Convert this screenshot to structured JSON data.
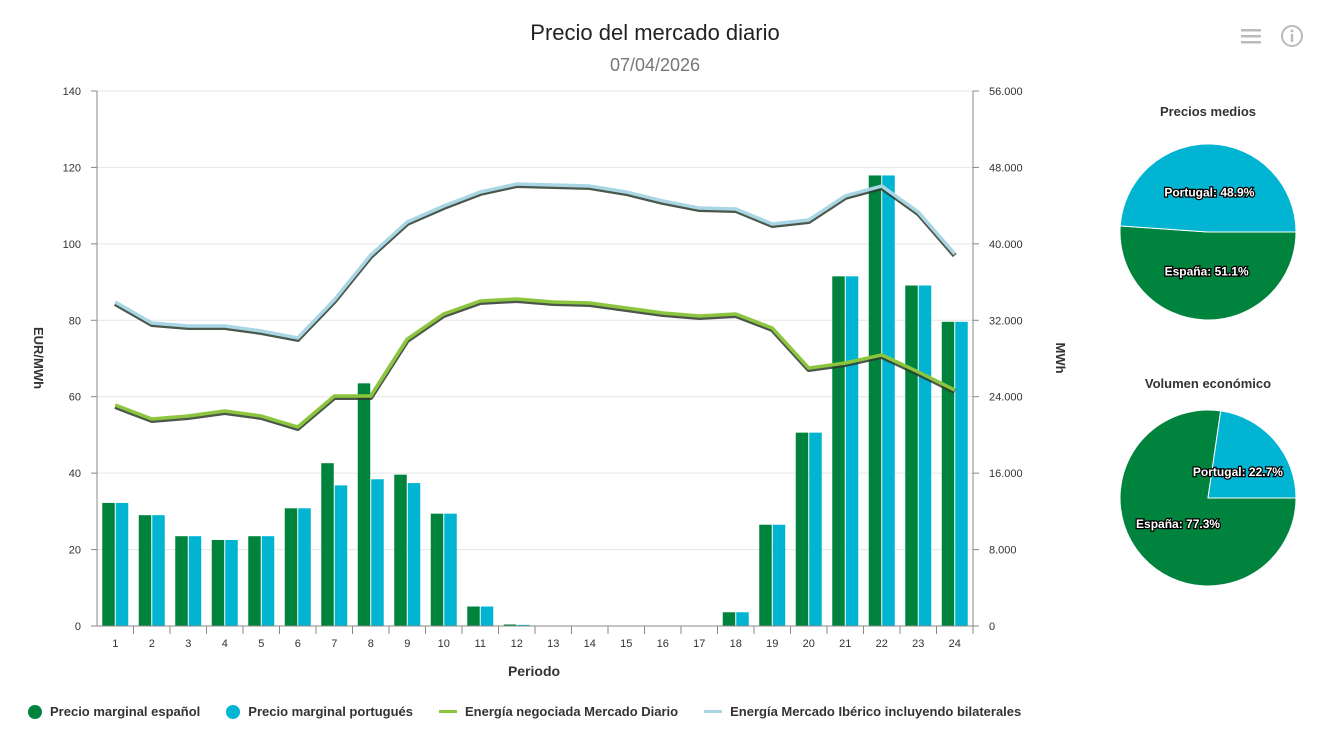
{
  "header": {
    "title": "Precio del mercado diario",
    "subtitle": "07/04/2026",
    "menu_icon": "hamburger-menu-icon",
    "info_icon": "info-icon"
  },
  "colors": {
    "spain": "#00843d",
    "portugal": "#00b4d2",
    "energy_md": "#8cc63f",
    "energy_iberian": "#a9d6e5"
  },
  "chart_data": [
    {
      "type": "bar+line",
      "title": "Precio del mercado diario",
      "subtitle": "07/04/2026",
      "xlabel": "Periodo",
      "ylabel": "EUR/MWh",
      "y2label": "MWh",
      "categories": [
        "1",
        "2",
        "3",
        "4",
        "5",
        "6",
        "7",
        "8",
        "9",
        "10",
        "11",
        "12",
        "13",
        "14",
        "15",
        "16",
        "17",
        "18",
        "19",
        "20",
        "21",
        "22",
        "23",
        "24"
      ],
      "ylim": [
        0,
        140
      ],
      "y2lim": [
        0,
        56000
      ],
      "yticks": [
        "0",
        "20",
        "40",
        "60",
        "80",
        "100",
        "120",
        "140"
      ],
      "y2ticks": [
        "0",
        "8.000",
        "16.000",
        "24.000",
        "32.000",
        "40.000",
        "48.000",
        "56.000"
      ],
      "grid": true,
      "legend_placement": "bottom-left",
      "series": [
        {
          "name": "Precio marginal español",
          "type": "bar",
          "axis": "left",
          "values": [
            32.2,
            29.0,
            23.5,
            22.5,
            23.5,
            30.8,
            42.6,
            63.5,
            39.6,
            29.4,
            5.1,
            0.4,
            0,
            0,
            0,
            0,
            0,
            3.6,
            26.5,
            50.6,
            91.5,
            117.9,
            89.1,
            79.6
          ]
        },
        {
          "name": "Precio marginal portugués",
          "type": "bar",
          "axis": "left",
          "values": [
            32.2,
            29.0,
            23.5,
            22.5,
            23.5,
            30.8,
            36.8,
            38.4,
            37.4,
            29.4,
            5.1,
            0.3,
            0,
            0,
            0,
            0,
            0,
            3.6,
            26.5,
            50.6,
            91.5,
            117.9,
            89.1,
            79.6
          ]
        },
        {
          "name": "Energía negociada Mercado Diario",
          "type": "line",
          "axis": "right",
          "values": [
            23130,
            21670,
            21980,
            22500,
            21980,
            20830,
            24070,
            24070,
            30040,
            32660,
            34020,
            34230,
            33910,
            33810,
            33290,
            32760,
            32450,
            32660,
            31190,
            27000,
            27530,
            28370,
            26590,
            24700
          ]
        },
        {
          "name": "Energía Mercado Ibérico incluyendo bilaterales",
          "type": "line",
          "axis": "right",
          "values": [
            33910,
            31720,
            31400,
            31400,
            30880,
            30150,
            34120,
            38830,
            42290,
            43960,
            45430,
            46260,
            46160,
            46050,
            45430,
            44490,
            43750,
            43650,
            42080,
            42500,
            45010,
            46050,
            43330,
            38940
          ]
        }
      ]
    },
    {
      "type": "pie",
      "title": "Precios medios",
      "slices": [
        {
          "name": "España",
          "value": 51.1,
          "label": "España: 51.1%"
        },
        {
          "name": "Portugal",
          "value": 48.9,
          "label": "Portugal: 48.9%"
        }
      ]
    },
    {
      "type": "pie",
      "title": "Volumen económico",
      "slices": [
        {
          "name": "España",
          "value": 77.3,
          "label": "España: 77.3%"
        },
        {
          "name": "Portugal",
          "value": 22.7,
          "label": "Portugal: 22.7%"
        }
      ]
    }
  ]
}
